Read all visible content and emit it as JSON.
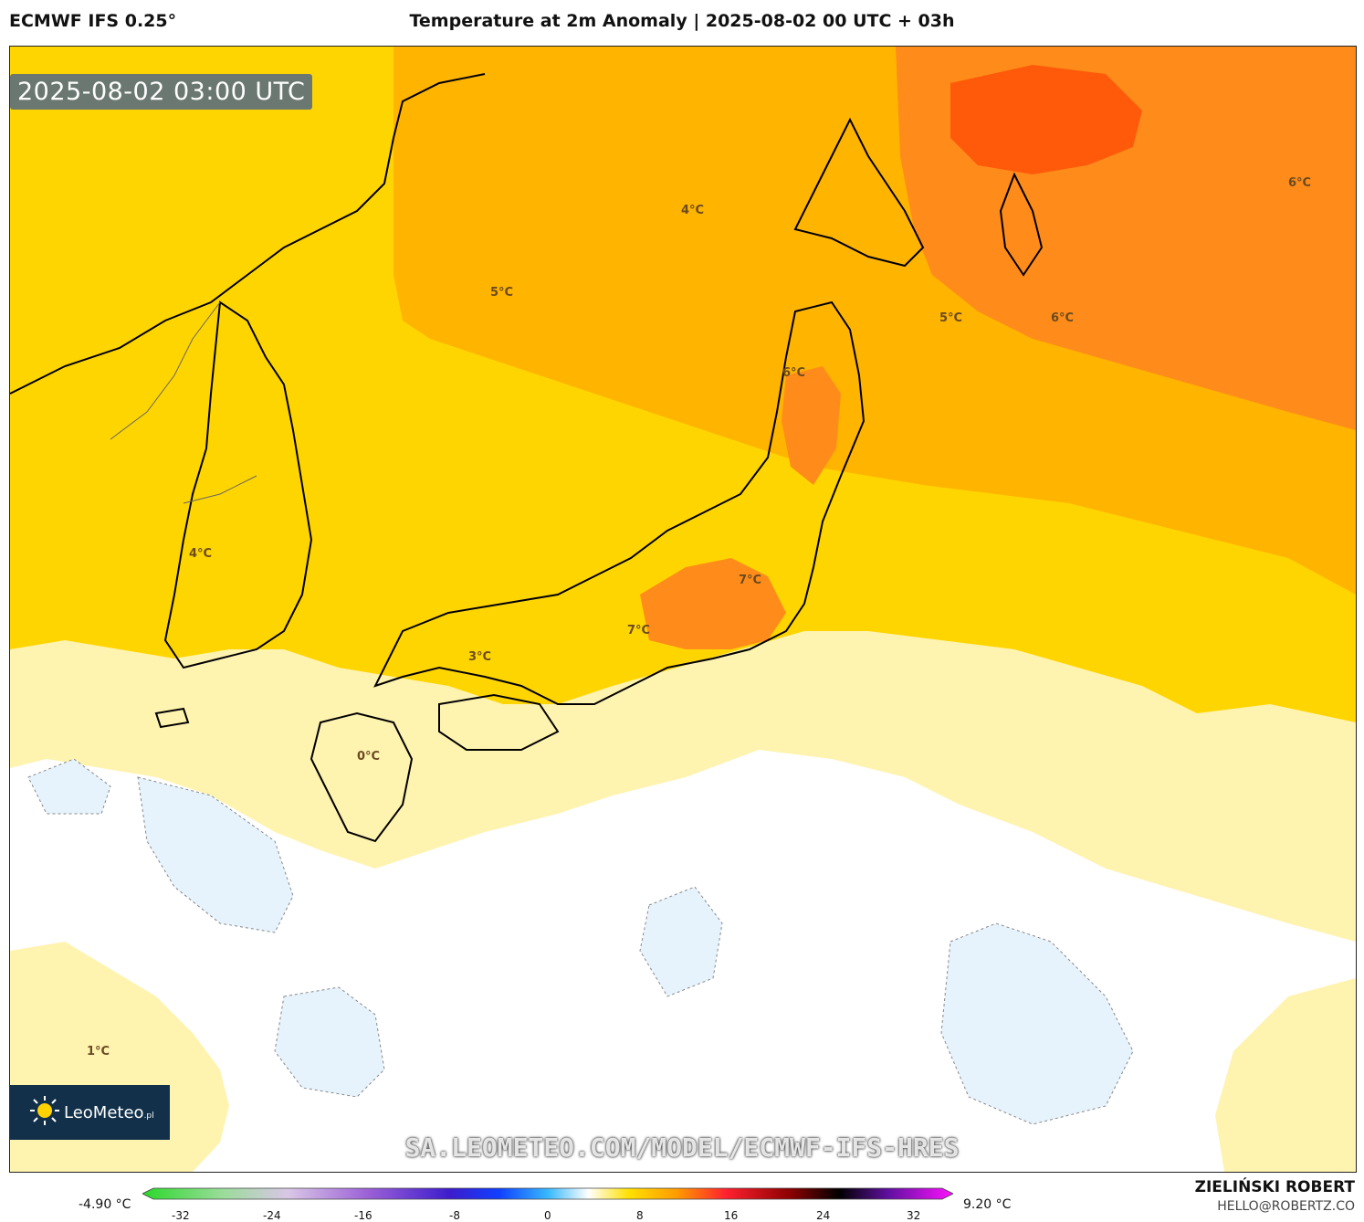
{
  "header": {
    "model": "ECMWF IFS 0.25°",
    "title": "Temperature at 2m Anomaly | 2025-08-02 00 UTC + 03h"
  },
  "map": {
    "valid_time": "2025-08-02 03:00 UTC",
    "labels": [
      "6°C",
      "4°C",
      "5°C",
      "5°C",
      "6°C",
      "6°C",
      "4°C",
      "7°C",
      "7°C",
      "3°C",
      "0°C",
      "1°C"
    ],
    "colors": {
      "near_zero": "#ffffff",
      "cool_light": "#e6f3fc",
      "warm_1": "#fff3b0",
      "warm_2": "#ffd500",
      "warm_3": "#ffb400",
      "warm_4": "#ff8c1a",
      "warm_5": "#ff5a0a"
    }
  },
  "logo": {
    "text": "LeoMeteo",
    "suffix": ".pl"
  },
  "watermark": "SA.LEOMETEO.COM/MODEL/ECMWF-IFS-HRES",
  "colorbar": {
    "min_label": "-4.90 °C",
    "max_label": "9.20 °C",
    "ticks": [
      "-32",
      "-24",
      "-16",
      "-8",
      "0",
      "8",
      "16",
      "24",
      "32"
    ]
  },
  "credit": {
    "author": "ZIELIŃSKI ROBERT",
    "email": "HELLO@ROBERTZ.CO"
  }
}
